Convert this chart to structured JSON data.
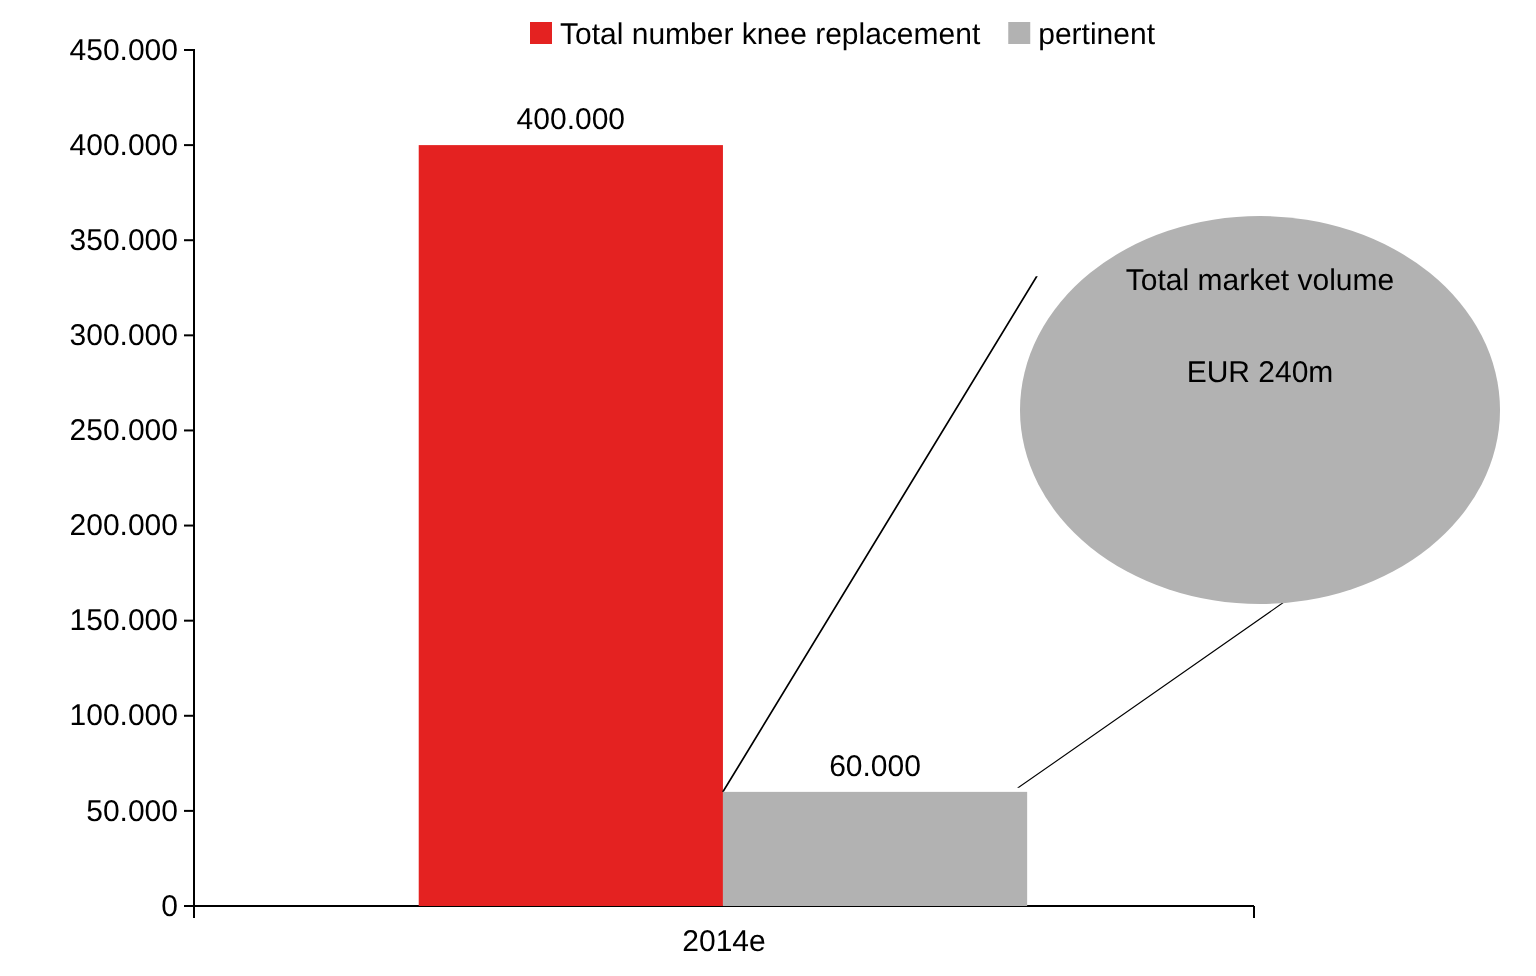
{
  "chart_data": {
    "type": "bar",
    "categories": [
      "2014e"
    ],
    "series": [
      {
        "name": "Total number knee replacement",
        "color": "#e42221",
        "values": [
          400000
        ],
        "value_labels": [
          "400.000"
        ]
      },
      {
        "name": "pertinent",
        "color": "#b2b2b2",
        "values": [
          60000
        ],
        "value_labels": [
          "60.000"
        ]
      }
    ],
    "ylim": [
      0,
      450000
    ],
    "yticks": [
      {
        "value": 0,
        "label": "0"
      },
      {
        "value": 50000,
        "label": "50.000"
      },
      {
        "value": 100000,
        "label": "100.000"
      },
      {
        "value": 150000,
        "label": "150.000"
      },
      {
        "value": 200000,
        "label": "200.000"
      },
      {
        "value": 250000,
        "label": "250.000"
      },
      {
        "value": 300000,
        "label": "300.000"
      },
      {
        "value": 350000,
        "label": "350.000"
      },
      {
        "value": 400000,
        "label": "400.000"
      },
      {
        "value": 450000,
        "label": "450.000"
      }
    ],
    "grid": false,
    "legend": "top",
    "annotations": [
      "Total market volume",
      "EUR 240m"
    ]
  }
}
